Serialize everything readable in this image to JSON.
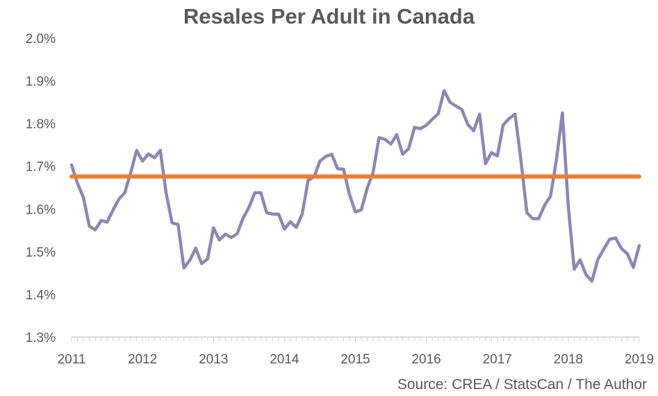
{
  "chart_data": {
    "type": "line",
    "title": "Resales Per Adult in Canada",
    "source": "Source: CREA / StatsCan / The Author",
    "xlabel": "",
    "ylabel": "",
    "x_tick_labels": [
      "2011",
      "2012",
      "2013",
      "2014",
      "2015",
      "2016",
      "2017",
      "2018",
      "2019"
    ],
    "y_tick_labels": [
      "1.3%",
      "1.4%",
      "1.5%",
      "1.6%",
      "1.7%",
      "1.8%",
      "1.9%",
      "2.0%"
    ],
    "x_range": [
      2011,
      2019
    ],
    "ylim": [
      1.3,
      2.0
    ],
    "grid": "none",
    "legend": "none",
    "series": [
      {
        "color": "#8B87B5",
        "x": [
          2011.0,
          2011.083,
          2011.167,
          2011.25,
          2011.333,
          2011.417,
          2011.5,
          2011.583,
          2011.667,
          2011.75,
          2011.833,
          2011.917,
          2012.0,
          2012.083,
          2012.167,
          2012.25,
          2012.333,
          2012.417,
          2012.5,
          2012.583,
          2012.667,
          2012.75,
          2012.833,
          2012.917,
          2013.0,
          2013.083,
          2013.167,
          2013.25,
          2013.333,
          2013.417,
          2013.5,
          2013.583,
          2013.667,
          2013.75,
          2013.833,
          2013.917,
          2014.0,
          2014.083,
          2014.167,
          2014.25,
          2014.333,
          2014.417,
          2014.5,
          2014.583,
          2014.667,
          2014.75,
          2014.833,
          2014.917,
          2015.0,
          2015.083,
          2015.167,
          2015.25,
          2015.333,
          2015.417,
          2015.5,
          2015.583,
          2015.667,
          2015.75,
          2015.833,
          2015.917,
          2016.0,
          2016.083,
          2016.167,
          2016.25,
          2016.333,
          2016.417,
          2016.5,
          2016.583,
          2016.667,
          2016.75,
          2016.833,
          2016.917,
          2017.0,
          2017.083,
          2017.167,
          2017.25,
          2017.333,
          2017.417,
          2017.5,
          2017.583,
          2017.667,
          2017.75,
          2017.833,
          2017.917,
          2018.0,
          2018.083,
          2018.167,
          2018.25,
          2018.333,
          2018.417,
          2018.5,
          2018.583,
          2018.667,
          2018.75,
          2018.833,
          2018.917,
          2019.0
        ],
        "values": [
          1.703,
          1.66,
          1.627,
          1.56,
          1.551,
          1.573,
          1.569,
          1.597,
          1.623,
          1.638,
          1.685,
          1.737,
          1.712,
          1.729,
          1.72,
          1.737,
          1.637,
          1.567,
          1.564,
          1.462,
          1.48,
          1.508,
          1.472,
          1.483,
          1.556,
          1.527,
          1.541,
          1.533,
          1.542,
          1.578,
          1.604,
          1.638,
          1.638,
          1.591,
          1.588,
          1.588,
          1.553,
          1.57,
          1.557,
          1.588,
          1.667,
          1.675,
          1.712,
          1.723,
          1.728,
          1.694,
          1.693,
          1.634,
          1.593,
          1.598,
          1.649,
          1.686,
          1.767,
          1.763,
          1.752,
          1.774,
          1.728,
          1.741,
          1.791,
          1.788,
          1.796,
          1.81,
          1.823,
          1.877,
          1.85,
          1.841,
          1.833,
          1.798,
          1.783,
          1.822,
          1.706,
          1.732,
          1.724,
          1.797,
          1.812,
          1.822,
          1.713,
          1.591,
          1.577,
          1.577,
          1.609,
          1.63,
          1.715,
          1.825,
          1.605,
          1.459,
          1.481,
          1.446,
          1.431,
          1.482,
          1.506,
          1.529,
          1.532,
          1.507,
          1.495,
          1.463,
          1.514
        ]
      },
      {
        "color": "#ED7D31",
        "x": [
          2011.0,
          2019.0
        ],
        "values": [
          1.676,
          1.676
        ]
      }
    ]
  }
}
